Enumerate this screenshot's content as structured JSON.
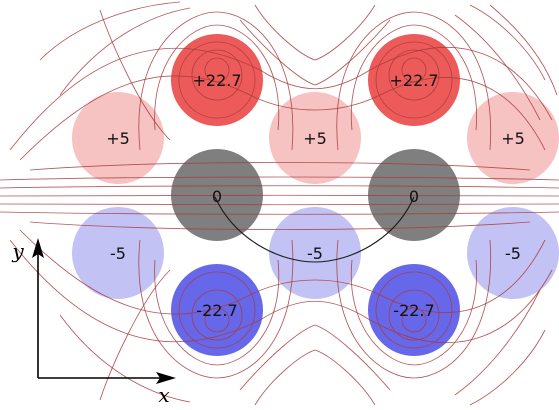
{
  "diagram": {
    "charges": [
      {
        "id": "pos-high-left",
        "label": "+22.7",
        "color": "#ec5a5a"
      },
      {
        "id": "pos-high-right",
        "label": "+22.7",
        "color": "#ec5a5a"
      },
      {
        "id": "pos-low-left",
        "label": "+5",
        "color": "#f6c2c2"
      },
      {
        "id": "pos-low-center",
        "label": "+5",
        "color": "#f6c2c2"
      },
      {
        "id": "pos-low-right",
        "label": "+5",
        "color": "#f6c2c2"
      },
      {
        "id": "zero-left",
        "label": "0",
        "color": "#7f7f7f"
      },
      {
        "id": "zero-right",
        "label": "0",
        "color": "#7f7f7f"
      },
      {
        "id": "neg-low-left",
        "label": "-5",
        "color": "#c2c2f4"
      },
      {
        "id": "neg-low-center",
        "label": "-5",
        "color": "#c2c2f4"
      },
      {
        "id": "neg-low-right",
        "label": "-5",
        "color": "#c2c2f4"
      },
      {
        "id": "neg-high-left",
        "label": "-22.7",
        "color": "#6767ea"
      },
      {
        "id": "neg-high-right",
        "label": "-22.7",
        "color": "#6767ea"
      }
    ],
    "axes": {
      "x_label": "x",
      "y_label": "y"
    },
    "colors": {
      "field_lines": "#a83a3a",
      "path": "#1a1a1a",
      "axis": "#000000"
    }
  }
}
